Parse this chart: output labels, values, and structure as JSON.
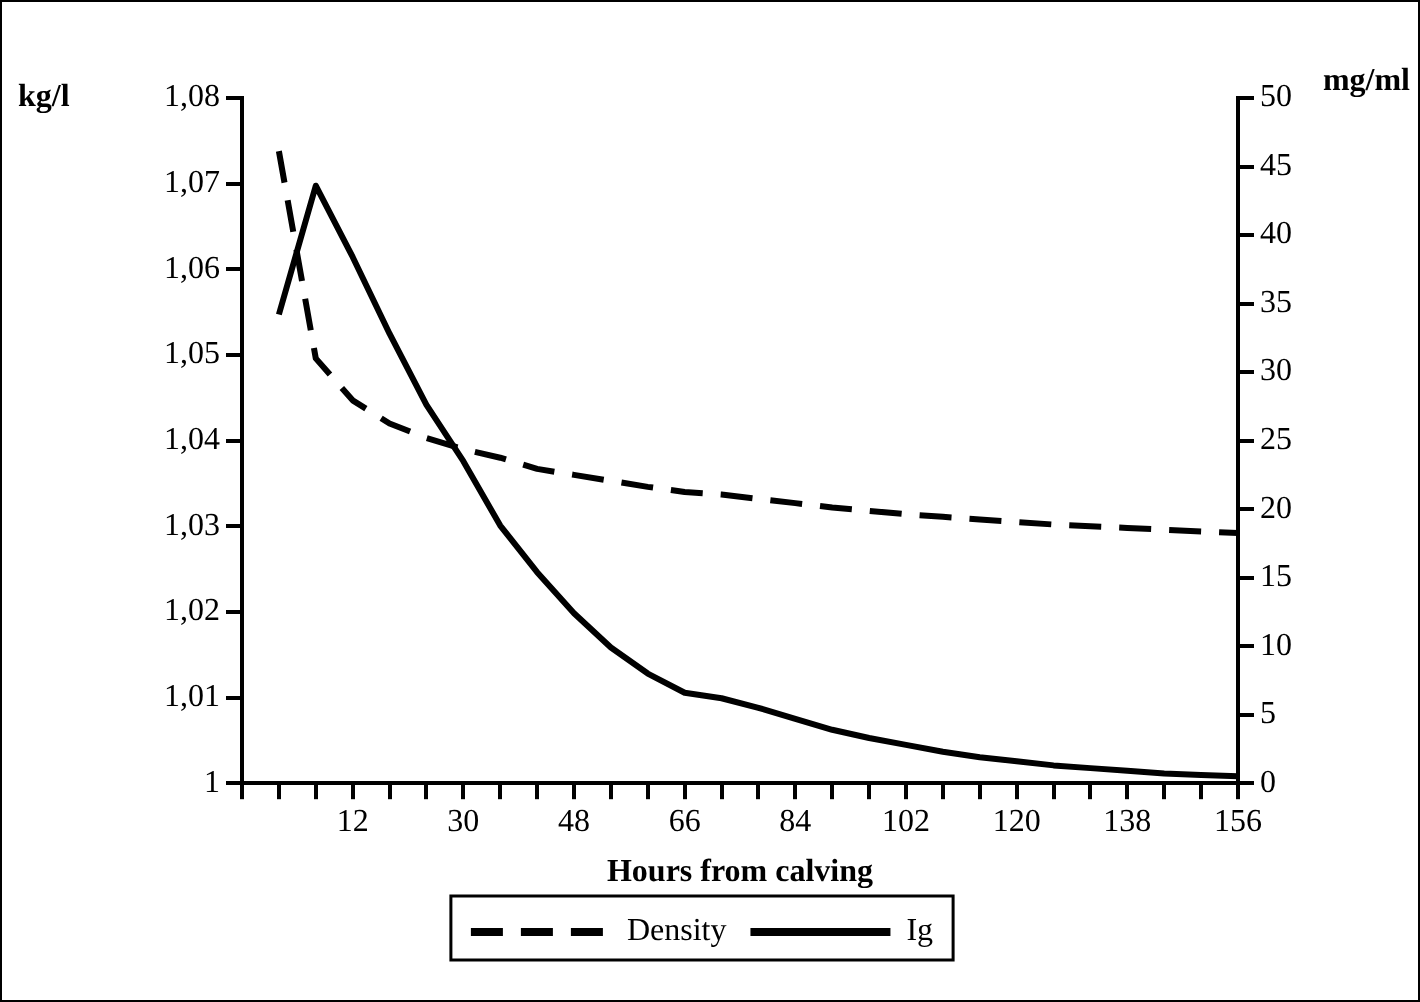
{
  "chart_data": {
    "type": "line",
    "xlabel": "Hours from calving",
    "ylabel": "kg/l",
    "y2label": "mg/ml",
    "x": [
      0,
      6,
      12,
      18,
      24,
      30,
      36,
      42,
      48,
      54,
      60,
      66,
      72,
      78,
      84,
      90,
      96,
      102,
      108,
      114,
      120,
      126,
      132,
      138,
      144,
      150,
      156
    ],
    "xlim": [
      -6,
      156
    ],
    "xticks": [
      {
        "value": -6,
        "label": null
      },
      {
        "value": 0,
        "label": null
      },
      {
        "value": 6,
        "label": null
      },
      12,
      {
        "value": 18,
        "label": null
      },
      {
        "value": 24,
        "label": null
      },
      30,
      {
        "value": 36,
        "label": null
      },
      {
        "value": 42,
        "label": null
      },
      48,
      {
        "value": 54,
        "label": null
      },
      {
        "value": 60,
        "label": null
      },
      66,
      {
        "value": 72,
        "label": null
      },
      {
        "value": 78,
        "label": null
      },
      84,
      {
        "value": 90,
        "label": null
      },
      {
        "value": 96,
        "label": null
      },
      102,
      {
        "value": 108,
        "label": null
      },
      {
        "value": 114,
        "label": null
      },
      120,
      {
        "value": 126,
        "label": null
      },
      {
        "value": 132,
        "label": null
      },
      138,
      {
        "value": 144,
        "label": null
      },
      {
        "value": 150,
        "label": null
      },
      156
    ],
    "ylim": [
      1,
      1.08
    ],
    "yticks": [
      1,
      {
        "value": 1.01,
        "label": "1,01"
      },
      {
        "value": 1.02,
        "label": "1,02"
      },
      {
        "value": 1.03,
        "label": "1,03"
      },
      {
        "value": 1.04,
        "label": "1,04"
      },
      {
        "value": 1.05,
        "label": "1,05"
      },
      {
        "value": 1.06,
        "label": "1,06"
      },
      {
        "value": 1.07,
        "label": "1,07"
      },
      {
        "value": 1.08,
        "label": "1,08"
      }
    ],
    "y2lim": [
      0,
      50
    ],
    "y2ticks": [
      0,
      5,
      10,
      15,
      20,
      25,
      30,
      35,
      40,
      45,
      50
    ],
    "series": [
      {
        "name": "Density",
        "color": "#000000",
        "line_style": "dashed",
        "values": [
          1.0738,
          1.0496,
          1.0447,
          1.042,
          1.0403,
          1.039,
          1.038,
          1.0367,
          1.036,
          1.0353,
          1.0346,
          1.034,
          1.0337,
          1.0332,
          1.0327,
          1.0322,
          1.0318,
          1.0314,
          1.0311,
          1.0308,
          1.0305,
          1.0302,
          1.03,
          1.0298,
          1.0296,
          1.0294,
          1.0292
        ]
      },
      {
        "name": "Ig",
        "color": "#000000",
        "line_style": "solid",
        "axis": "y2",
        "values": [
          34.2,
          43.6,
          38.4,
          32.8,
          27.6,
          23.5,
          18.8,
          15.4,
          12.4,
          9.9,
          8.0,
          6.6,
          6.2,
          5.5,
          4.7,
          3.9,
          3.3,
          2.8,
          2.3,
          1.9,
          1.6,
          1.3,
          1.1,
          0.9,
          0.7,
          0.6,
          0.5
        ]
      }
    ],
    "legend": "bottom",
    "grid": false,
    "marker": "none"
  }
}
